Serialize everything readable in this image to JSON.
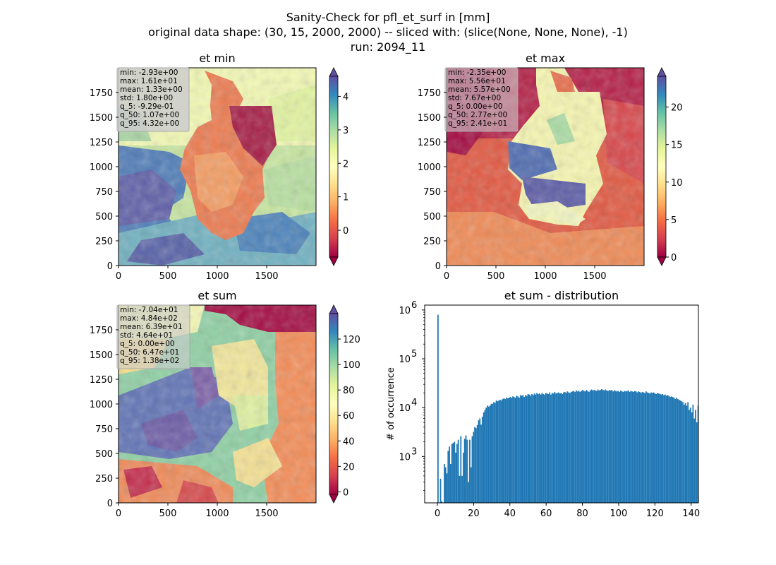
{
  "figure": {
    "suptitle": [
      "Sanity-Check for pfl_et_surf in [mm]",
      "original data shape: (30, 15, 2000, 2000) -- sliced with: (slice(None, None, None), -1)",
      "run: 2094_11"
    ],
    "colormap": "Spectral"
  },
  "colors": {
    "hist_bar": "#1f77b4",
    "stats_box_bg": "#cccccc",
    "land_outside": "light map background",
    "spectral_stops": [
      "#9e0142",
      "#d53e4f",
      "#f46d43",
      "#fdae61",
      "#fee08b",
      "#ffffbf",
      "#e6f598",
      "#abdda4",
      "#66c2a5",
      "#3288bd",
      "#5e4fa2"
    ]
  },
  "panels": [
    {
      "title": "et min",
      "xticks": [
        "0",
        "500",
        "1000",
        "1500"
      ],
      "yticks": [
        "0",
        "250",
        "500",
        "750",
        "1000",
        "1250",
        "1500",
        "1750"
      ],
      "colorbar_ticks": [
        "0",
        "1",
        "2",
        "3",
        "4"
      ],
      "colorbar_range": [
        -0.8,
        4.6
      ],
      "stats": [
        "min: -2.93e+00",
        "max: 1.61e+01",
        "mean: 1.33e+00",
        "std: 1.80e+00",
        "q_5: -9.29e-01",
        "q_50: 1.07e+00",
        "q_95: 4.32e+00"
      ]
    },
    {
      "title": "et max",
      "xticks": [
        "0",
        "500",
        "1000",
        "1500"
      ],
      "yticks": [
        "0",
        "250",
        "500",
        "750",
        "1000",
        "1250",
        "1500",
        "1750"
      ],
      "colorbar_ticks": [
        "0",
        "5",
        "10",
        "15",
        "20"
      ],
      "colorbar_range": [
        0,
        24.1
      ],
      "stats": [
        "min: -2.35e+00",
        "max: 5.56e+01",
        "mean: 5.57e+00",
        "std: 7.67e+00",
        "q_5: 0.00e+00",
        "q_50: 2.77e+00",
        "q_95: 2.41e+01"
      ]
    },
    {
      "title": "et sum",
      "xticks": [
        "0",
        "500",
        "1000",
        "1500"
      ],
      "yticks": [
        "0",
        "250",
        "500",
        "750",
        "1000",
        "1250",
        "1500",
        "1750"
      ],
      "colorbar_ticks": [
        "0",
        "20",
        "40",
        "60",
        "80",
        "100",
        "120"
      ],
      "colorbar_range": [
        -2,
        140
      ],
      "stats": [
        "min: -7.04e+01",
        "max: 4.84e+02",
        "mean: 6.39e+01",
        "std: 4.64e+01",
        "q_5: 0.00e+00",
        "q_50: 6.47e+01",
        "q_95: 1.38e+02"
      ]
    }
  ],
  "chart_data": {
    "type": "bar",
    "title": "et sum - distribution",
    "ylabel": "# of occurrence",
    "xlabel": "",
    "yscale": "log",
    "xlim": [
      -7,
      144
    ],
    "ylim_log10": [
      2.05,
      6.1
    ],
    "xticks": [
      "0",
      "20",
      "40",
      "60",
      "80",
      "100",
      "120",
      "140"
    ],
    "yticks": [
      {
        "base": "10",
        "exp": "3",
        "value": 1000
      },
      {
        "base": "10",
        "exp": "4",
        "value": 10000
      },
      {
        "base": "10",
        "exp": "5",
        "value": 100000
      },
      {
        "base": "10",
        "exp": "6",
        "value": 1000000
      }
    ],
    "bin_width": 0.7,
    "x_start": 0,
    "values": [
      800000,
      0,
      350,
      120,
      0,
      700,
      600,
      450,
      1300,
      1600,
      700,
      1800,
      1900,
      2000,
      1200,
      1800,
      2200,
      400,
      2600,
      400,
      1200,
      2300,
      2700,
      2200,
      300,
      2200,
      600,
      2600,
      3200,
      4000,
      3800,
      4400,
      5500,
      6000,
      4500,
      6500,
      8000,
      9000,
      10000,
      11000,
      10500,
      11000,
      12000,
      12000,
      13000,
      12500,
      14000,
      13500,
      14000,
      14500,
      14000,
      15000,
      15500,
      15000,
      16000,
      15500,
      16000,
      16500,
      16000,
      17000,
      16500,
      16000,
      17500,
      17000,
      16000,
      18000,
      17500,
      18000,
      16500,
      18000,
      17500,
      19000,
      18500,
      17500,
      19000,
      18000,
      19500,
      18500,
      20000,
      19000,
      19500,
      18500,
      20000,
      19000,
      18500,
      20000,
      19500,
      19000,
      20500,
      18500,
      20000,
      19500,
      21000,
      19500,
      20000,
      20500,
      19500,
      20000,
      19000,
      20500,
      21000,
      20000,
      21500,
      20500,
      20000,
      21000,
      21500,
      22000,
      21000,
      22500,
      21500,
      22000,
      21000,
      22000,
      23000,
      22000,
      21500,
      23000,
      22000,
      21000,
      22500,
      23500,
      22500,
      23000,
      22500,
      22000,
      23500,
      22500,
      23000,
      24000,
      23000,
      22500,
      23500,
      22500,
      22000,
      23000,
      22500,
      23000,
      21500,
      22500,
      22000,
      21500,
      22000,
      21000,
      22500,
      21500,
      21000,
      22000,
      21500,
      22000,
      22500,
      21000,
      22000,
      21500,
      21000,
      22000,
      21500,
      20500,
      21500,
      21000,
      20000,
      21000,
      20500,
      20000,
      21500,
      20500,
      20000,
      19500,
      20500,
      20000,
      20500,
      19500,
      19000,
      20000,
      19500,
      19000,
      18500,
      19000,
      18000,
      18500,
      17500,
      18000,
      17500,
      16500,
      17000,
      16500,
      16000,
      15000,
      16000,
      15000,
      14500,
      14000,
      13500,
      13000,
      11500,
      12500,
      11000,
      13000,
      9000,
      10000,
      8000,
      11500,
      6000,
      9000,
      5000,
      11000
    ]
  }
}
